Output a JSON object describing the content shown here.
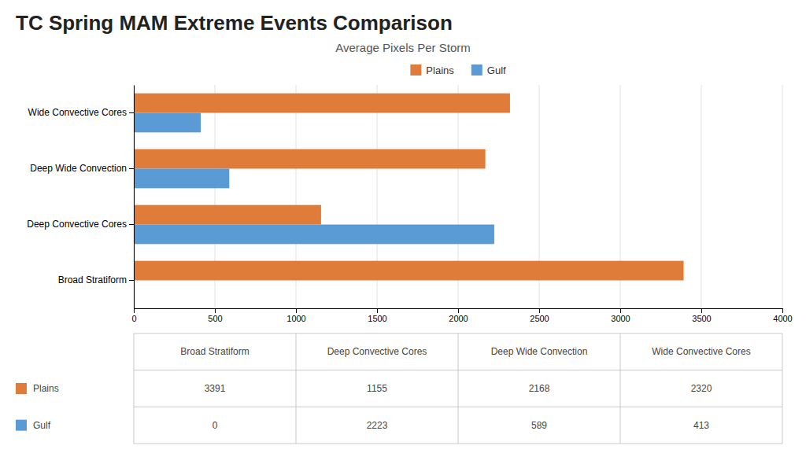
{
  "chart_data": {
    "type": "bar",
    "orientation": "horizontal",
    "title": "TC Spring MAM Extreme Events Comparison",
    "subtitle": "Average Pixels Per Storm",
    "categories": [
      "Broad Stratiform",
      "Deep Convective Cores",
      "Deep Wide Convection",
      "Wide Convective Cores"
    ],
    "series": [
      {
        "name": "Plains",
        "color": "#E07C3A",
        "values": [
          3391,
          1155,
          2168,
          2320
        ]
      },
      {
        "name": "Gulf",
        "color": "#5B9BD5",
        "values": [
          0,
          2223,
          589,
          413
        ]
      }
    ],
    "xlim": [
      0,
      4000
    ],
    "xticks": [
      0,
      500,
      1000,
      1500,
      2000,
      2500,
      3000,
      3500,
      4000
    ],
    "grid": true,
    "legend": "top"
  }
}
